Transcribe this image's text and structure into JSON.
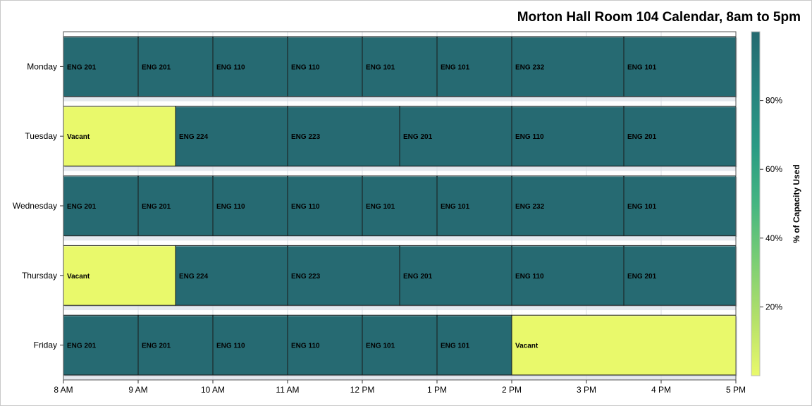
{
  "chart_data": {
    "type": "bar",
    "subtype": "gantt-calendar",
    "title": "Morton Hall Room 104 Calendar, 8am to 5pm",
    "xlabel": "",
    "ylabel": "",
    "x_ticks": [
      "8 AM",
      "9 AM",
      "10 AM",
      "11 AM",
      "12 PM",
      "1 PM",
      "2 PM",
      "3 PM",
      "4 PM",
      "5 PM"
    ],
    "xlim": [
      8,
      17
    ],
    "days": [
      "Monday",
      "Tuesday",
      "Wednesday",
      "Thursday",
      "Friday"
    ],
    "grid": true,
    "colorbar": {
      "title": "% of Capacity Used",
      "ticks": [
        "20%",
        "40%",
        "60%",
        "80%"
      ],
      "tick_values": [
        20,
        40,
        60,
        80
      ],
      "range": [
        0,
        100
      ],
      "placement": "right",
      "colors": [
        "#e9f96b",
        "#b3e06a",
        "#7bce74",
        "#44b581",
        "#2a9a84",
        "#26827e",
        "#256a70"
      ]
    },
    "colors": {
      "occupied": "#266a72",
      "vacant": "#e9f96b"
    },
    "bookings": [
      {
        "day": "Monday",
        "start": 8,
        "end": 9,
        "label": "ENG 201",
        "vacant": false
      },
      {
        "day": "Monday",
        "start": 9,
        "end": 10,
        "label": "ENG 201",
        "vacant": false
      },
      {
        "day": "Monday",
        "start": 10,
        "end": 11,
        "label": "ENG 110",
        "vacant": false
      },
      {
        "day": "Monday",
        "start": 11,
        "end": 12,
        "label": "ENG 110",
        "vacant": false
      },
      {
        "day": "Monday",
        "start": 12,
        "end": 13,
        "label": "ENG 101",
        "vacant": false
      },
      {
        "day": "Monday",
        "start": 13,
        "end": 14,
        "label": "ENG 101",
        "vacant": false
      },
      {
        "day": "Monday",
        "start": 14,
        "end": 15.5,
        "label": "ENG 232",
        "vacant": false
      },
      {
        "day": "Monday",
        "start": 15.5,
        "end": 17,
        "label": "ENG 101",
        "vacant": false
      },
      {
        "day": "Tuesday",
        "start": 8,
        "end": 9.5,
        "label": "Vacant",
        "vacant": true
      },
      {
        "day": "Tuesday",
        "start": 9.5,
        "end": 11,
        "label": "ENG 224",
        "vacant": false
      },
      {
        "day": "Tuesday",
        "start": 11,
        "end": 12.5,
        "label": "ENG 223",
        "vacant": false
      },
      {
        "day": "Tuesday",
        "start": 12.5,
        "end": 14,
        "label": "ENG 201",
        "vacant": false
      },
      {
        "day": "Tuesday",
        "start": 14,
        "end": 15.5,
        "label": "ENG 110",
        "vacant": false
      },
      {
        "day": "Tuesday",
        "start": 15.5,
        "end": 17,
        "label": "ENG 201",
        "vacant": false
      },
      {
        "day": "Wednesday",
        "start": 8,
        "end": 9,
        "label": "ENG 201",
        "vacant": false
      },
      {
        "day": "Wednesday",
        "start": 9,
        "end": 10,
        "label": "ENG 201",
        "vacant": false
      },
      {
        "day": "Wednesday",
        "start": 10,
        "end": 11,
        "label": "ENG 110",
        "vacant": false
      },
      {
        "day": "Wednesday",
        "start": 11,
        "end": 12,
        "label": "ENG 110",
        "vacant": false
      },
      {
        "day": "Wednesday",
        "start": 12,
        "end": 13,
        "label": "ENG 101",
        "vacant": false
      },
      {
        "day": "Wednesday",
        "start": 13,
        "end": 14,
        "label": "ENG 101",
        "vacant": false
      },
      {
        "day": "Wednesday",
        "start": 14,
        "end": 15.5,
        "label": "ENG 232",
        "vacant": false
      },
      {
        "day": "Wednesday",
        "start": 15.5,
        "end": 17,
        "label": "ENG 101",
        "vacant": false
      },
      {
        "day": "Thursday",
        "start": 8,
        "end": 9.5,
        "label": "Vacant",
        "vacant": true
      },
      {
        "day": "Thursday",
        "start": 9.5,
        "end": 11,
        "label": "ENG 224",
        "vacant": false
      },
      {
        "day": "Thursday",
        "start": 11,
        "end": 12.5,
        "label": "ENG 223",
        "vacant": false
      },
      {
        "day": "Thursday",
        "start": 12.5,
        "end": 14,
        "label": "ENG 201",
        "vacant": false
      },
      {
        "day": "Thursday",
        "start": 14,
        "end": 15.5,
        "label": "ENG 110",
        "vacant": false
      },
      {
        "day": "Thursday",
        "start": 15.5,
        "end": 17,
        "label": "ENG 201",
        "vacant": false
      },
      {
        "day": "Friday",
        "start": 8,
        "end": 9,
        "label": "ENG 201",
        "vacant": false
      },
      {
        "day": "Friday",
        "start": 9,
        "end": 10,
        "label": "ENG 201",
        "vacant": false
      },
      {
        "day": "Friday",
        "start": 10,
        "end": 11,
        "label": "ENG 110",
        "vacant": false
      },
      {
        "day": "Friday",
        "start": 11,
        "end": 12,
        "label": "ENG 110",
        "vacant": false
      },
      {
        "day": "Friday",
        "start": 12,
        "end": 13,
        "label": "ENG 101",
        "vacant": false
      },
      {
        "day": "Friday",
        "start": 13,
        "end": 14,
        "label": "ENG 101",
        "vacant": false
      },
      {
        "day": "Friday",
        "start": 14,
        "end": 17,
        "label": "Vacant",
        "vacant": true
      }
    ]
  }
}
